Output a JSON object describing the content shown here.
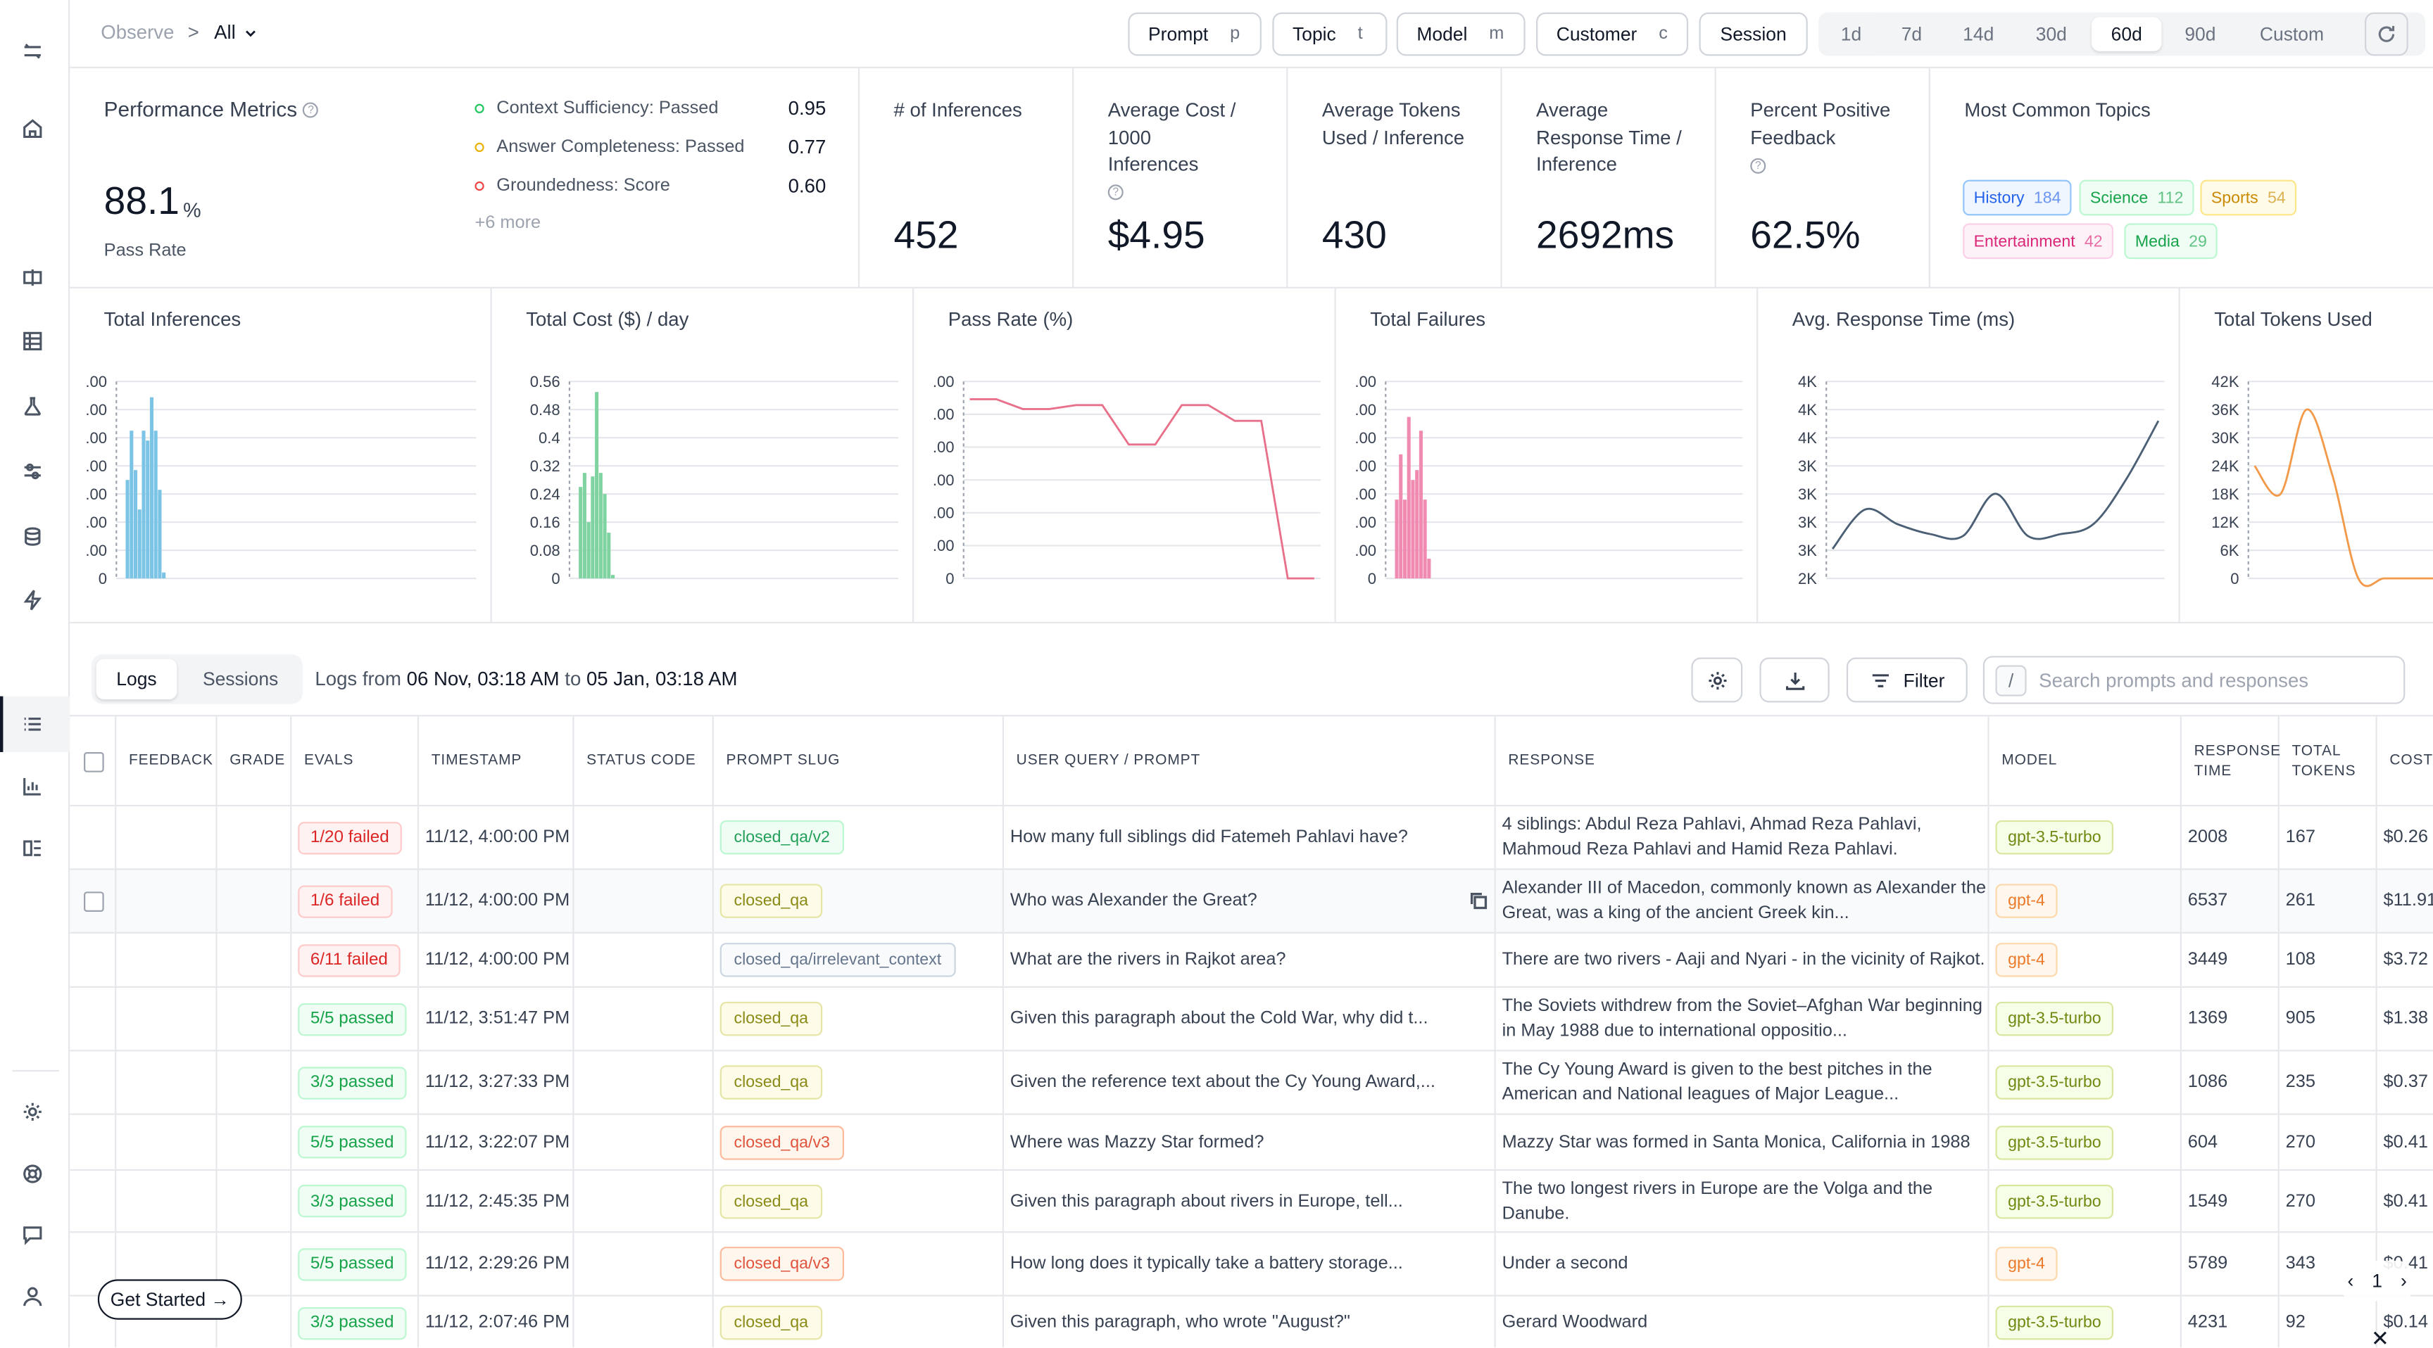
{
  "breadcrumb": {
    "root": "Observe",
    "separator": ">",
    "current": "All"
  },
  "filters": [
    {
      "label": "Prompt",
      "key": "p"
    },
    {
      "label": "Topic",
      "key": "t"
    },
    {
      "label": "Model",
      "key": "m"
    },
    {
      "label": "Customer",
      "key": "c"
    }
  ],
  "session_button": "Session",
  "ranges": [
    "1d",
    "7d",
    "14d",
    "30d",
    "60d",
    "90d",
    "Custom"
  ],
  "active_range": "60d",
  "performance": {
    "title": "Performance Metrics",
    "value": "88.1",
    "unit": "%",
    "label": "Pass Rate",
    "evals": [
      {
        "label": "Context Sufficiency: Passed",
        "value": "0.95",
        "color": "#22c55e"
      },
      {
        "label": "Answer Completeness: Passed",
        "value": "0.77",
        "color": "#eab308"
      },
      {
        "label": "Groundedness: Score",
        "value": "0.60",
        "color": "#ef4444"
      }
    ],
    "more": "+6 more"
  },
  "kpis": [
    {
      "title_lines": [
        "# of Inferences"
      ],
      "value": "452",
      "help": false
    },
    {
      "title_lines": [
        "Average Cost /",
        "1000",
        "Inferences"
      ],
      "value": "$4.95",
      "help": true
    },
    {
      "title_lines": [
        "Average Tokens",
        "Used / Inference"
      ],
      "value": "430",
      "help": false
    },
    {
      "title_lines": [
        "Average",
        "Response Time /",
        "Inference"
      ],
      "value": "2692ms",
      "help": false
    },
    {
      "title_lines": [
        "Percent Positive",
        "Feedback"
      ],
      "value": "62.5%",
      "help": true
    }
  ],
  "topics": {
    "title": "Most Common Topics",
    "items": [
      {
        "name": "History",
        "count": "184",
        "color": "#2563eb",
        "bg": "#eff6ff",
        "border": "#93c5fd"
      },
      {
        "name": "Science",
        "count": "112",
        "color": "#16a34a",
        "bg": "#f0fdf4",
        "border": "#bbf7d0"
      },
      {
        "name": "Sports",
        "count": "54",
        "color": "#ca8a04",
        "bg": "#fefce8",
        "border": "#fde68a"
      },
      {
        "name": "Entertainment",
        "count": "42",
        "color": "#db2777",
        "bg": "#fdf2f8",
        "border": "#fbcfe8"
      },
      {
        "name": "Media",
        "count": "29",
        "color": "#16a34a",
        "bg": "#f0fdf4",
        "border": "#bbf7d0"
      }
    ]
  },
  "chart_data": [
    {
      "type": "bar",
      "title": "Total Inferences",
      "y_tick_labels": [
        ".00",
        ".00",
        ".00",
        ".00",
        ".00",
        ".00",
        ".00",
        "0"
      ],
      "values": [
        0.5,
        0.75,
        0.55,
        0.35,
        0.75,
        0.7,
        0.92,
        0.75,
        0.45,
        0.03
      ],
      "color": "#7cc4e6"
    },
    {
      "type": "bar",
      "title": "Total Cost ($) / day",
      "y_tick_labels": [
        "0.56",
        "0.48",
        "0.4",
        "0.32",
        "0.24",
        "0.16",
        "0.08",
        "0"
      ],
      "values": [
        0.26,
        0.3,
        0.16,
        0.29,
        0.53,
        0.3,
        0.24,
        0.13,
        0.01
      ],
      "color": "#7fd3a0",
      "ylim": [
        0,
        0.56
      ]
    },
    {
      "type": "line",
      "title": "Pass Rate (%)",
      "y_tick_labels": [
        ".00",
        ".00",
        ".00",
        ".00",
        ".00",
        ".00",
        "0"
      ],
      "x": [
        0,
        1,
        2,
        3,
        4,
        5,
        6,
        7,
        8,
        9,
        10,
        11,
        12,
        13
      ],
      "values": [
        0.91,
        0.91,
        0.86,
        0.86,
        0.88,
        0.88,
        0.68,
        0.68,
        0.88,
        0.88,
        0.8,
        0.8,
        0.0,
        0.0
      ],
      "color": "#e8708a"
    },
    {
      "type": "bar",
      "title": "Total Failures",
      "y_tick_labels": [
        ".00",
        ".00",
        ".00",
        ".00",
        ".00",
        ".00",
        ".00",
        "0"
      ],
      "values": [
        0.4,
        0.63,
        0.4,
        0.82,
        0.5,
        0.55,
        0.75,
        0.4,
        0.1
      ],
      "color": "#f08ab0"
    },
    {
      "type": "line",
      "title": "Avg. Response Time (ms)",
      "y_tick_labels": [
        "4K",
        "4K",
        "4K",
        "3K",
        "3K",
        "3K",
        "3K",
        "2K"
      ],
      "x": [
        0,
        1,
        2,
        3,
        4,
        5,
        6,
        7,
        8,
        9,
        10
      ],
      "values": [
        2300,
        2700,
        2550,
        2450,
        2430,
        2860,
        2430,
        2450,
        2550,
        3000,
        3600
      ],
      "ylim": [
        2000,
        4000
      ],
      "color": "#4b5f75"
    },
    {
      "type": "line",
      "title": "Total Tokens Used",
      "y_tick_labels": [
        "42K",
        "36K",
        "30K",
        "24K",
        "18K",
        "12K",
        "6K",
        "0"
      ],
      "x": [
        0,
        1,
        2,
        3,
        4,
        5,
        6,
        7
      ],
      "values": [
        24000,
        18000,
        36000,
        22000,
        0,
        0,
        0,
        0
      ],
      "ylim": [
        0,
        42000
      ],
      "color": "#f29a4a"
    }
  ],
  "logs": {
    "tabs": [
      "Logs",
      "Sessions"
    ],
    "range_prefix": "Logs from",
    "range_from": "06 Nov, 03:18 AM",
    "range_to_word": "to",
    "range_to": "05 Jan, 03:18 AM",
    "filter_label": "Filter",
    "search_slash": "/",
    "search_placeholder": "Search prompts and responses"
  },
  "table": {
    "columns": [
      "FEEDBACK",
      "GRADE",
      "EVALS",
      "TIMESTAMP",
      "STATUS CODE",
      "PROMPT SLUG",
      "USER QUERY / PROMPT",
      "RESPONSE",
      "MODEL",
      "RESPONSE TIME",
      "TOTAL TOKENS",
      "COST"
    ],
    "rows": [
      {
        "eval": "1/20 failed",
        "status": "fail",
        "timestamp": "11/12, 4:00:00 PM",
        "slug": "closed_qa/v2",
        "slug_style": "green",
        "query": "How many full siblings did Fatemeh Pahlavi have?",
        "response": "4 siblings: Abdul Reza Pahlavi, Ahmad Reza Pahlavi, Mahmoud Reza Pahlavi and Hamid Reza Pahlavi.",
        "model": "gpt-3.5-turbo",
        "response_time": "2008",
        "tokens": "167",
        "cost": "$0.26"
      },
      {
        "eval": "1/6 failed",
        "status": "fail",
        "timestamp": "11/12, 4:00:00 PM",
        "slug": "closed_qa",
        "slug_style": "olive",
        "query": "Who was Alexander the Great?",
        "response": "Alexander III of Macedon, commonly known as Alexander the Great, was a king of the ancient Greek kin...",
        "model": "gpt-4",
        "response_time": "6537",
        "tokens": "261",
        "cost": "$11.91"
      },
      {
        "eval": "6/11 failed",
        "status": "fail",
        "timestamp": "11/12, 4:00:00 PM",
        "slug": "closed_qa/irrelevant_context",
        "slug_style": "gray",
        "query": "What are the rivers in Rajkot area?",
        "response": "There are two rivers - Aaji and Nyari - in the vicinity of Rajkot.",
        "model": "gpt-4",
        "response_time": "3449",
        "tokens": "108",
        "cost": "$3.72"
      },
      {
        "eval": "5/5 passed",
        "status": "pass",
        "timestamp": "11/12, 3:51:47 PM",
        "slug": "closed_qa",
        "slug_style": "olive",
        "query": "Given this paragraph about the Cold War, why did t...",
        "response": "The Soviets withdrew from the Soviet–Afghan War beginning in May 1988 due to international oppositio...",
        "model": "gpt-3.5-turbo",
        "response_time": "1369",
        "tokens": "905",
        "cost": "$1.38"
      },
      {
        "eval": "3/3 passed",
        "status": "pass",
        "timestamp": "11/12, 3:27:33 PM",
        "slug": "closed_qa",
        "slug_style": "olive",
        "query": "Given the reference text about the Cy Young Award,...",
        "response": "The Cy Young Award is given to the best pitches in the American and National leagues of Major League...",
        "model": "gpt-3.5-turbo",
        "response_time": "1086",
        "tokens": "235",
        "cost": "$0.37"
      },
      {
        "eval": "5/5 passed",
        "status": "pass",
        "timestamp": "11/12, 3:22:07 PM",
        "slug": "closed_qa/v3",
        "slug_style": "red",
        "query": "Where was Mazzy Star formed?",
        "response": "Mazzy Star was formed in Santa Monica, California in 1988",
        "model": "gpt-3.5-turbo",
        "response_time": "604",
        "tokens": "270",
        "cost": "$0.41"
      },
      {
        "eval": "3/3 passed",
        "status": "pass",
        "timestamp": "11/12, 2:45:35 PM",
        "slug": "closed_qa",
        "slug_style": "olive",
        "query": "Given this paragraph about rivers in Europe, tell...",
        "response": "The two longest rivers in Europe are the Volga and the Danube.",
        "model": "gpt-3.5-turbo",
        "response_time": "1549",
        "tokens": "270",
        "cost": "$0.41"
      },
      {
        "eval": "5/5 passed",
        "status": "pass",
        "timestamp": "11/12, 2:29:26 PM",
        "slug": "closed_qa/v3",
        "slug_style": "red",
        "query": "How long does it typically take a battery storage...",
        "response": "Under a second",
        "model": "gpt-4",
        "response_time": "5789",
        "tokens": "343",
        "cost": "$0.41"
      },
      {
        "eval": "3/3 passed",
        "status": "pass",
        "timestamp": "11/12, 2:07:46 PM",
        "slug": "closed_qa",
        "slug_style": "olive",
        "query": "Given this paragraph, who wrote \"August?\"",
        "response": "Gerard Woodward",
        "model": "gpt-3.5-turbo",
        "response_time": "4231",
        "tokens": "92",
        "cost": "$0.14"
      }
    ]
  },
  "slug_styles": {
    "green": {
      "color": "#22a05a",
      "bg": "#f0fdf4",
      "border": "#bbf7d0"
    },
    "olive": {
      "color": "#8a8a16",
      "bg": "#fefce8",
      "border": "#e5e5a6"
    },
    "gray": {
      "color": "#64748b",
      "bg": "#f8fafc",
      "border": "#cbd5e1"
    },
    "red": {
      "color": "#e0533d",
      "bg": "#fff7ed",
      "border": "#fdba9c"
    }
  },
  "model_styles": {
    "gpt-3.5-turbo": {
      "color": "#6e8a12",
      "bg": "#f7fee7",
      "border": "#d9e79e"
    },
    "gpt-4": {
      "color": "#ea7a2a",
      "bg": "#fff7ed",
      "border": "#fed7aa"
    }
  },
  "get_started": "Get Started →",
  "pager": {
    "prev": "‹",
    "page": "1",
    "next": "›"
  },
  "close_glyph": "✕"
}
